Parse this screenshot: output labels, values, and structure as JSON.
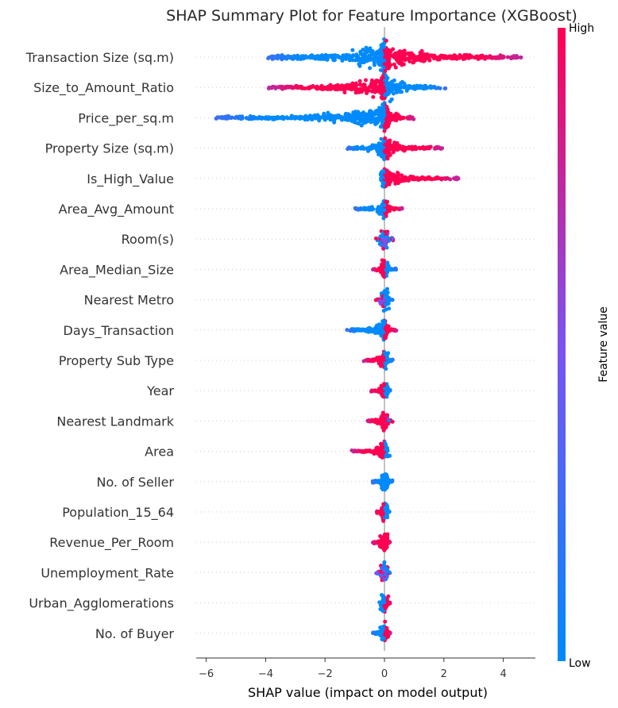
{
  "chart_data": {
    "type": "scatter",
    "title": "SHAP Summary Plot for Feature Importance (XGBoost)",
    "xlabel": "SHAP value (impact on model output)",
    "xlim": [
      -6.2,
      5.2
    ],
    "xticks": [
      -6,
      -4,
      -2,
      0,
      2,
      4
    ],
    "colorbar": {
      "label": "Feature value",
      "high_label": "High",
      "low_label": "Low",
      "low_color": "#008afb",
      "mid_color": "#7c52f0",
      "high_color": "#ff0052"
    },
    "features": [
      {
        "name": "Transaction Size (sq.m)",
        "min": -4.0,
        "max": 4.6,
        "neg_color": "low",
        "pos_color": "high",
        "width": 1.0
      },
      {
        "name": "Size_to_Amount_Ratio",
        "min": -3.9,
        "max": 2.1,
        "neg_color": "high",
        "pos_color": "low",
        "width": 0.85
      },
      {
        "name": "Price_per_sq.m",
        "min": -5.7,
        "max": 1.0,
        "neg_color": "low",
        "pos_color": "high",
        "width": 0.8
      },
      {
        "name": "Property Size (sq.m)",
        "min": -1.3,
        "max": 2.0,
        "neg_color": "low",
        "pos_color": "high",
        "width": 0.5
      },
      {
        "name": "Is_High_Value",
        "min": -0.1,
        "max": 2.5,
        "neg_color": "low",
        "pos_color": "high",
        "width": 0.45
      },
      {
        "name": "Area_Avg_Amount",
        "min": -1.0,
        "max": 0.6,
        "neg_color": "low",
        "pos_color": "high",
        "width": 0.4
      },
      {
        "name": "Room(s)",
        "min": -0.3,
        "max": 0.3,
        "neg_color": "mixed",
        "pos_color": "mixed",
        "width": 0.45
      },
      {
        "name": "Area_Median_Size",
        "min": -0.4,
        "max": 0.4,
        "neg_color": "high",
        "pos_color": "low",
        "width": 0.35
      },
      {
        "name": "Nearest Metro",
        "min": -0.3,
        "max": 0.3,
        "neg_color": "mixed",
        "pos_color": "low",
        "width": 0.35
      },
      {
        "name": "Days_Transaction",
        "min": -1.3,
        "max": 0.4,
        "neg_color": "low",
        "pos_color": "high",
        "width": 0.4
      },
      {
        "name": "Property Sub Type",
        "min": -0.7,
        "max": 0.3,
        "neg_color": "high",
        "pos_color": "low",
        "width": 0.4
      },
      {
        "name": "Year",
        "min": -0.5,
        "max": 0.2,
        "neg_color": "high",
        "pos_color": "low",
        "width": 0.35
      },
      {
        "name": "Nearest Landmark",
        "min": -0.6,
        "max": 0.3,
        "neg_color": "high",
        "pos_color": "mixed",
        "width": 0.4
      },
      {
        "name": "Area",
        "min": -1.1,
        "max": 0.1,
        "neg_color": "high",
        "pos_color": "low",
        "width": 0.4
      },
      {
        "name": "No. of Seller",
        "min": -0.4,
        "max": 0.3,
        "neg_color": "low",
        "pos_color": "low",
        "width": 0.35
      },
      {
        "name": "Population_15_64",
        "min": -0.3,
        "max": 0.2,
        "neg_color": "high",
        "pos_color": "low",
        "width": 0.35
      },
      {
        "name": "Revenue_Per_Room",
        "min": -0.4,
        "max": 0.2,
        "neg_color": "high",
        "pos_color": "high",
        "width": 0.4
      },
      {
        "name": "Unemployment_Rate",
        "min": -0.3,
        "max": 0.2,
        "neg_color": "mixed",
        "pos_color": "mixed",
        "width": 0.35
      },
      {
        "name": "Urban_Agglomerations",
        "min": -0.2,
        "max": 0.2,
        "neg_color": "low",
        "pos_color": "high",
        "width": 0.35
      },
      {
        "name": "No. of Buyer",
        "min": -0.4,
        "max": 0.2,
        "neg_color": "low",
        "pos_color": "high",
        "width": 0.35
      }
    ]
  }
}
